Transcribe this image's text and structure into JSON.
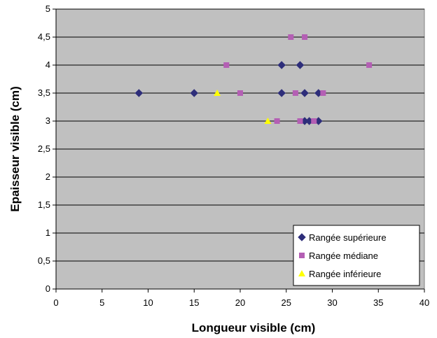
{
  "chart_data": {
    "type": "scatter",
    "title": "",
    "xlabel": "Longueur visible (cm)",
    "ylabel": "Epaisseur visible (cm)",
    "xlim": [
      0,
      40
    ],
    "ylim": [
      0,
      5
    ],
    "x_ticks": [
      "0",
      "5",
      "10",
      "15",
      "20",
      "25",
      "30",
      "35",
      "40"
    ],
    "y_ticks": [
      "0",
      "0,5",
      "1",
      "1,5",
      "2",
      "2,5",
      "3",
      "3,5",
      "4",
      "4,5",
      "5"
    ],
    "grid": "horizontal",
    "legend_position": "bottom-right",
    "plot_background": "#c0c0c0",
    "series": [
      {
        "name": "Rangée supérieure",
        "marker": "diamond",
        "color": "#2e2e7a",
        "points": [
          {
            "x": 9,
            "y": 3.5
          },
          {
            "x": 15,
            "y": 3.5
          },
          {
            "x": 24.5,
            "y": 3.5
          },
          {
            "x": 27,
            "y": 3.5
          },
          {
            "x": 28.5,
            "y": 3.5
          },
          {
            "x": 24.5,
            "y": 4
          },
          {
            "x": 26.5,
            "y": 4
          },
          {
            "x": 27,
            "y": 3
          },
          {
            "x": 27.5,
            "y": 3
          },
          {
            "x": 28.5,
            "y": 3
          }
        ]
      },
      {
        "name": "Rangée médiane",
        "marker": "square",
        "color": "#b45fb4",
        "points": [
          {
            "x": 18.5,
            "y": 4
          },
          {
            "x": 34,
            "y": 4
          },
          {
            "x": 25.5,
            "y": 4.5
          },
          {
            "x": 27,
            "y": 4.5
          },
          {
            "x": 20,
            "y": 3.5
          },
          {
            "x": 26,
            "y": 3.5
          },
          {
            "x": 29,
            "y": 3.5
          },
          {
            "x": 24,
            "y": 3
          },
          {
            "x": 26.5,
            "y": 3
          },
          {
            "x": 28,
            "y": 3
          }
        ]
      },
      {
        "name": "Rangée inférieure",
        "marker": "triangle",
        "color": "#ffff00",
        "points": [
          {
            "x": 17.5,
            "y": 3.5
          },
          {
            "x": 23,
            "y": 3
          }
        ]
      }
    ]
  }
}
